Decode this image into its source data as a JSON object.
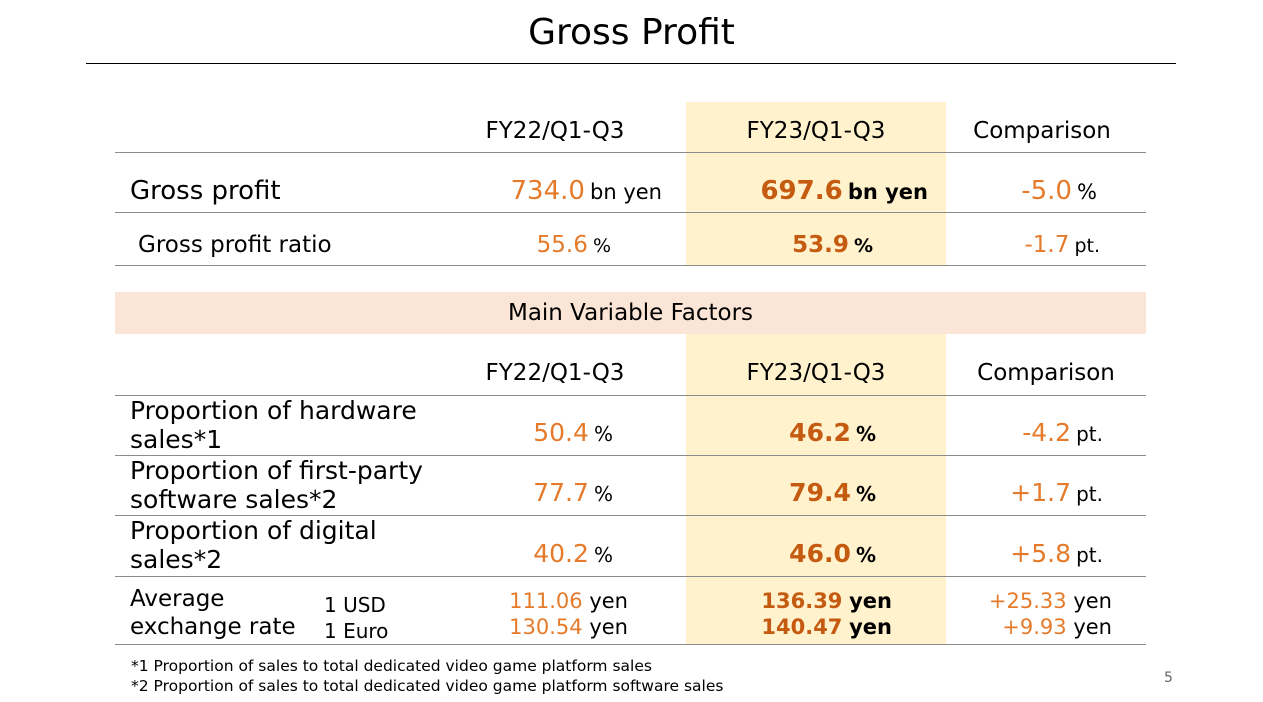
{
  "title": "Gross Profit",
  "top_table": {
    "headers": [
      "FY22/Q1-Q3",
      "FY23/Q1-Q3",
      "Comparison"
    ],
    "rows": [
      {
        "label": "Gross profit",
        "fy22": {
          "num": "734.0",
          "unit": "bn yen"
        },
        "fy23": {
          "num": "697.6",
          "unit": "bn yen"
        },
        "cmp": {
          "num": "-5.0",
          "unit": "%"
        }
      },
      {
        "label": "Gross profit ratio",
        "fy22": {
          "num": "55.6",
          "unit": "%"
        },
        "fy23": {
          "num": "53.9",
          "unit": "%"
        },
        "cmp": {
          "num": "-1.7",
          "unit": "pt."
        }
      }
    ]
  },
  "factors": {
    "banner": "Main Variable Factors",
    "headers": [
      "FY22/Q1-Q3",
      "FY23/Q1-Q3",
      "Comparison"
    ],
    "rows": [
      {
        "label_line1": "Proportion of hardware",
        "label_line2": "sales*1",
        "fy22": {
          "num": "50.4",
          "unit": "%"
        },
        "fy23": {
          "num": "46.2",
          "unit": "%"
        },
        "cmp": {
          "num": "-4.2",
          "unit": "pt."
        }
      },
      {
        "label_line1": "Proportion of first-party",
        "label_line2": "software sales*2",
        "fy22": {
          "num": "77.7",
          "unit": "%"
        },
        "fy23": {
          "num": "79.4",
          "unit": "%"
        },
        "cmp": {
          "num": "+1.7",
          "unit": "pt."
        }
      },
      {
        "label_line1": "Proportion of digital",
        "label_line2": "sales*2",
        "fy22": {
          "num": "40.2",
          "unit": "%"
        },
        "fy23": {
          "num": "46.0",
          "unit": "%"
        },
        "cmp": {
          "num": "+5.8",
          "unit": "pt."
        }
      }
    ],
    "fx": {
      "label_line1": "Average",
      "label_line2": "exchange rate",
      "currencies": [
        "1 USD",
        "1 Euro"
      ],
      "fy22": [
        {
          "num": "111.06",
          "unit": "yen"
        },
        {
          "num": "130.54",
          "unit": "yen"
        }
      ],
      "fy23": [
        {
          "num": "136.39",
          "unit": "yen"
        },
        {
          "num": "140.47",
          "unit": "yen"
        }
      ],
      "cmp": [
        {
          "num": "+25.33",
          "unit": "yen"
        },
        {
          "num": "+9.93",
          "unit": "yen"
        }
      ]
    }
  },
  "footnotes": [
    "*1 Proportion of sales to total dedicated video game platform sales",
    "*2 Proportion of sales to total dedicated video game platform software sales"
  ],
  "page_number": "5",
  "colors": {
    "highlight_column": "#FFF2CC",
    "banner_bg": "#FBE5D6",
    "value_orange": "#E57B2A",
    "value_orange_bold": "#C55A11"
  }
}
